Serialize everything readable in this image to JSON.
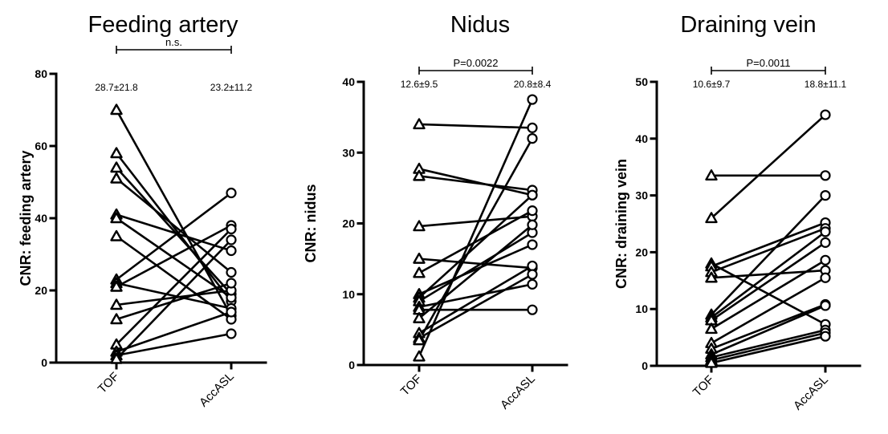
{
  "chart_data": [
    {
      "type": "line",
      "title": "Feeding artery",
      "ylabel": "CNR: feeding artery",
      "categories": [
        "TOF",
        "AccASL"
      ],
      "ylim": [
        0,
        80
      ],
      "yticks": [
        0,
        20,
        40,
        60,
        80
      ],
      "yticklabels": [
        "0",
        "20",
        "40",
        "60",
        "80"
      ],
      "stats": [
        "28.7±21.8",
        "23.2±11.2"
      ],
      "significance": "n.s.",
      "pairs": [
        [
          70,
          13
        ],
        [
          58,
          17
        ],
        [
          54,
          19
        ],
        [
          51,
          25
        ],
        [
          41,
          31
        ],
        [
          40,
          18
        ],
        [
          35,
          12
        ],
        [
          23,
          47
        ],
        [
          22,
          15
        ],
        [
          21,
          38
        ],
        [
          16,
          20
        ],
        [
          12,
          22
        ],
        [
          5,
          37
        ],
        [
          3,
          14
        ],
        [
          2,
          8
        ],
        [
          1,
          34
        ]
      ]
    },
    {
      "type": "line",
      "title": "Nidus",
      "ylabel": "CNR: nidus",
      "categories": [
        "TOF",
        "AccASL"
      ],
      "ylim": [
        0,
        40
      ],
      "yticks": [
        0,
        10,
        20,
        30,
        40
      ],
      "yticklabels": [
        "0",
        "10",
        "20",
        "30",
        "40"
      ],
      "stats": [
        "12.6±9.5",
        "20.8±8.4"
      ],
      "significance": "P=0.0022",
      "pairs": [
        [
          34,
          33.5
        ],
        [
          27.7,
          24
        ],
        [
          26.7,
          24.7
        ],
        [
          19.6,
          21
        ],
        [
          15,
          13.7
        ],
        [
          13,
          21.8
        ],
        [
          10,
          17
        ],
        [
          9.5,
          24
        ],
        [
          9,
          18.7
        ],
        [
          8.2,
          11.4
        ],
        [
          7.8,
          7.8
        ],
        [
          6.6,
          19.8
        ],
        [
          4.5,
          14
        ],
        [
          3.8,
          12.8
        ],
        [
          3.5,
          32
        ],
        [
          1.2,
          37.5
        ]
      ]
    },
    {
      "type": "line",
      "title": "Draining vein",
      "ylabel": "CNR: draining vein",
      "categories": [
        "TOF",
        "AccASL"
      ],
      "ylim": [
        0,
        50
      ],
      "yticks": [
        0,
        10,
        20,
        30,
        40,
        50
      ],
      "yticklabels": [
        "0",
        "10",
        "20",
        "30",
        "40",
        "50"
      ],
      "stats": [
        "10.6±9.7",
        "18.8±11.1"
      ],
      "significance": "P=0.0011",
      "pairs": [
        [
          33.5,
          33.5
        ],
        [
          26,
          44.2
        ],
        [
          18,
          7.3
        ],
        [
          17.5,
          25.2
        ],
        [
          16.5,
          24.2
        ],
        [
          15.5,
          16.8
        ],
        [
          9,
          30
        ],
        [
          8.5,
          23.6
        ],
        [
          8,
          21.7
        ],
        [
          6.5,
          18.6
        ],
        [
          4,
          15.5
        ],
        [
          3,
          10.8
        ],
        [
          2,
          10.6
        ],
        [
          1.5,
          6.3
        ],
        [
          1,
          5.8
        ],
        [
          0.5,
          5.2
        ]
      ]
    }
  ]
}
